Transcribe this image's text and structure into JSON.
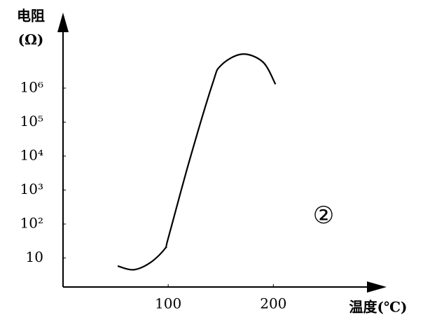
{
  "chart_data": {
    "type": "line",
    "y_label": [
      "电阻",
      "(Ω)"
    ],
    "x_label": "温度(℃)",
    "annotation": "②",
    "y_scale": "log",
    "color": "#000000",
    "x": [
      52,
      67,
      83,
      97,
      100,
      120,
      142,
      150,
      170,
      190,
      202
    ],
    "values": [
      5.8,
      4.5,
      7.3,
      19,
      38,
      7000,
      1300000,
      4600000,
      10000000,
      5900000,
      1300000
    ],
    "xlim": [
      0,
      303
    ],
    "xticks": [
      100,
      200
    ],
    "ylim": [
      1.4,
      120000000
    ],
    "yticks": [
      10,
      {
        "value": 100,
        "label": "10²"
      },
      {
        "value": 1000,
        "label": "10³"
      },
      {
        "value": 10000,
        "label": "10⁴"
      },
      {
        "value": 100000,
        "label": "10⁵"
      },
      {
        "value": 1000000,
        "label": "10⁶"
      }
    ]
  }
}
